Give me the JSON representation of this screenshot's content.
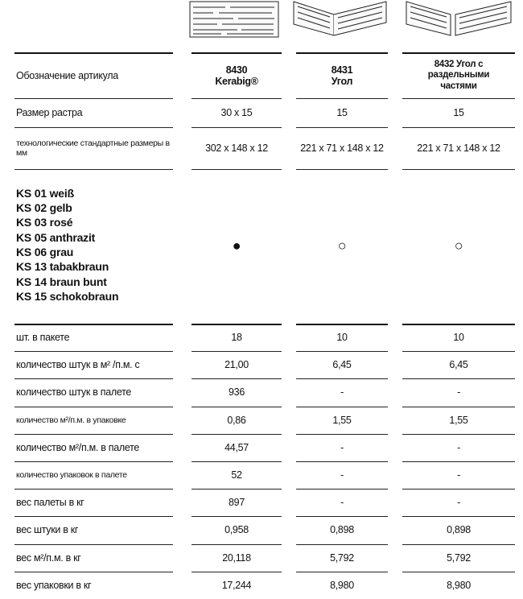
{
  "table": {
    "header": {
      "label": "Обозначение артикула",
      "columns": [
        [
          "8430",
          "Kerabig®"
        ],
        [
          "8431",
          "Угол"
        ],
        [
          "8432 Угол с",
          "раздельными",
          "частями"
        ]
      ]
    },
    "spec_rows": [
      {
        "label": "Размер растра",
        "cells": [
          "30 x 15",
          "15",
          "15"
        ]
      },
      {
        "label": "технологические стандартные размеры в мм",
        "cells": [
          "302 x 148 x 12",
          "221 x 71 x 148 x 12",
          "221 x 71 x 148 x 12"
        ]
      }
    ],
    "colors": {
      "items": [
        "KS 01 weiß",
        "KS 02 gelb",
        "KS 03 rosé",
        "KS 05 anthrazit",
        "KS 06 grau",
        "KS 13 tabakbraun",
        "KS 14 braun bunt",
        "KS 15 schokobraun"
      ],
      "marks": [
        "●",
        "○",
        "○"
      ]
    },
    "rows": [
      {
        "label": "шт. в пакете",
        "cells": [
          "18",
          "10",
          "10"
        ]
      },
      {
        "label": "количество штук в м² /п.м. с",
        "cells": [
          "21,00",
          "6,45",
          "6,45"
        ]
      },
      {
        "label": "количество штук в палете",
        "cells": [
          "936",
          "-",
          "-"
        ]
      },
      {
        "label": "количество м²/п.м. в упаковке",
        "cells": [
          "0,86",
          "1,55",
          "1,55"
        ]
      },
      {
        "label": "количество м²/п.м. в палете",
        "cells": [
          "44,57",
          "-",
          "-"
        ]
      },
      {
        "label": "количество упаковок в палете",
        "cells": [
          "52",
          "-",
          "-"
        ]
      },
      {
        "label": "вес палеты в кг",
        "cells": [
          "897",
          "-",
          "-"
        ]
      },
      {
        "label": "вес штуки в кг",
        "cells": [
          "0,958",
          "0,898",
          "0,898"
        ]
      },
      {
        "label": "вес м²/п.м. в кг",
        "cells": [
          "20,118",
          "5,792",
          "5,792"
        ]
      },
      {
        "label": "вес упаковки в кг",
        "cells": [
          "17,244",
          "8,980",
          "8,980"
        ]
      }
    ]
  }
}
